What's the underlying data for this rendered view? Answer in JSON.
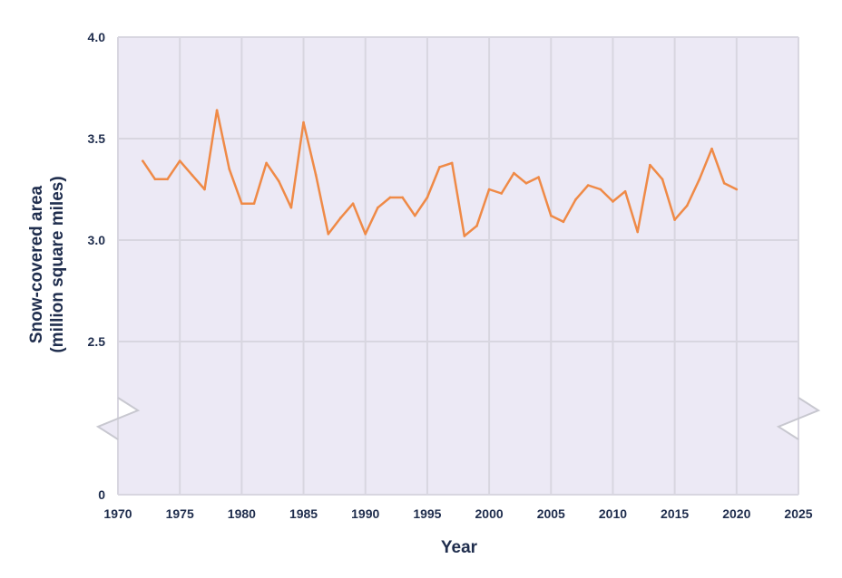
{
  "chart_data": {
    "type": "line",
    "title": "",
    "xlabel": "Year",
    "ylabel_line1": "Snow-covered area",
    "ylabel_line2": "(million square miles)",
    "xlim": [
      1970,
      2025
    ],
    "ylim": [
      0,
      4.0
    ],
    "axis_break": true,
    "grid": true,
    "x_ticks": [
      "1970",
      "1975",
      "1980",
      "1985",
      "1990",
      "1995",
      "2000",
      "2005",
      "2010",
      "2015",
      "2020",
      "2025"
    ],
    "y_ticks": [
      "0",
      "2.5",
      "3.0",
      "3.5",
      "4.0"
    ],
    "colors": {
      "line": "#ef8a47",
      "plot_bg": "#ece9f5",
      "grid": "#ffffff",
      "text": "#1f2d4d",
      "break_line": "#c8c8d0"
    },
    "series": [
      {
        "x": [
          1972,
          1973,
          1974,
          1975,
          1976,
          1977,
          1978,
          1979,
          1980,
          1981,
          1982,
          1983,
          1984,
          1985,
          1986,
          1987,
          1988,
          1989,
          1990,
          1991,
          1992,
          1993,
          1994,
          1995,
          1996,
          1997,
          1998,
          1999,
          2000,
          2001,
          2002,
          2003,
          2004,
          2005,
          2006,
          2007,
          2008,
          2009,
          2010,
          2011,
          2012,
          2013,
          2014,
          2015,
          2016,
          2017,
          2018,
          2019,
          2020
        ],
        "values": [
          3.39,
          3.3,
          3.3,
          3.39,
          3.32,
          3.25,
          3.64,
          3.35,
          3.18,
          3.18,
          3.38,
          3.29,
          3.16,
          3.58,
          3.32,
          3.03,
          3.11,
          3.18,
          3.03,
          3.16,
          3.21,
          3.21,
          3.12,
          3.21,
          3.36,
          3.38,
          3.02,
          3.07,
          3.25,
          3.23,
          3.33,
          3.28,
          3.31,
          3.12,
          3.09,
          3.2,
          3.27,
          3.25,
          3.19,
          3.24,
          3.04,
          3.37,
          3.3,
          3.1,
          3.17,
          3.3,
          3.45,
          3.28,
          3.25
        ]
      }
    ]
  }
}
